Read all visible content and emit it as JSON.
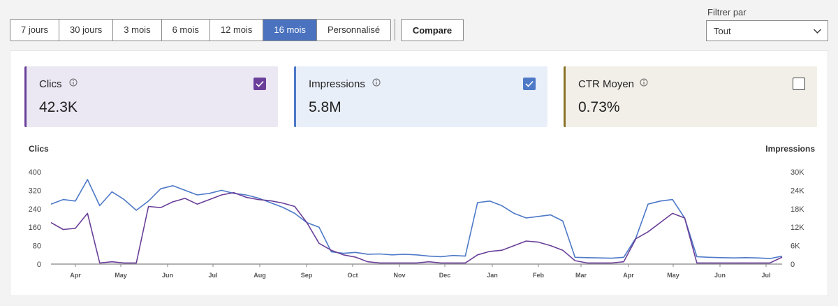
{
  "ranges": [
    "7 jours",
    "30 jours",
    "3 mois",
    "6 mois",
    "12 mois",
    "16 mois",
    "Personnalisé"
  ],
  "active_range": "16 mois",
  "compare_label": "Compare",
  "filter": {
    "label": "Filtrer par",
    "value": "Tout"
  },
  "cards": [
    {
      "title": "Clics",
      "value": "42.3K",
      "checked": true
    },
    {
      "title": "Impressions",
      "value": "5.8M",
      "checked": true
    },
    {
      "title": "CTR Moyen",
      "value": "0.73%",
      "checked": false
    }
  ],
  "colors": {
    "clics": "#6a3f99",
    "impressions": "#4d79c7",
    "ctr": "#8a7327",
    "active": "#4a72bf"
  },
  "chart_data": {
    "type": "line",
    "left_axis_title": "Clics",
    "right_axis_title": "Impressions",
    "left_ticks": [
      "400",
      "320",
      "240",
      "160",
      "80",
      "0"
    ],
    "right_ticks": [
      "30K",
      "24K",
      "18K",
      "12K",
      "6K",
      "0"
    ],
    "ylim_left": [
      0,
      400
    ],
    "ylim_right": [
      0,
      30000
    ],
    "x_labels": [
      "Apr",
      "May",
      "Jun",
      "Jul",
      "Aug",
      "Sep",
      "Oct",
      "Nov",
      "Dec",
      "Jan",
      "Feb",
      "Mar",
      "Apr",
      "May",
      "Jun",
      "Jul"
    ],
    "series": [
      {
        "name": "Impressions",
        "axis": "right",
        "values": [
          19500,
          21000,
          20500,
          27500,
          19000,
          23500,
          21000,
          17500,
          20500,
          24500,
          25500,
          24000,
          22500,
          23000,
          24000,
          23000,
          22500,
          21500,
          20000,
          18500,
          16500,
          13500,
          12000,
          4000,
          3500,
          3800,
          3200,
          3300,
          3000,
          3200,
          3000,
          2600,
          2400,
          2800,
          2600,
          20000,
          20500,
          19000,
          16500,
          15000,
          15500,
          16000,
          14000,
          2200,
          2100,
          2000,
          1900,
          2200,
          8500,
          19500,
          20500,
          21000,
          15000,
          2400,
          2200,
          2100,
          2000,
          2100,
          2000,
          1800,
          2600
        ]
      },
      {
        "name": "Clics",
        "axis": "left",
        "values": [
          180,
          150,
          155,
          220,
          5,
          10,
          5,
          5,
          250,
          245,
          270,
          285,
          260,
          280,
          300,
          310,
          290,
          280,
          275,
          265,
          250,
          180,
          90,
          60,
          40,
          30,
          10,
          5,
          5,
          5,
          5,
          10,
          5,
          5,
          5,
          40,
          55,
          60,
          80,
          100,
          95,
          80,
          60,
          15,
          5,
          5,
          5,
          10,
          110,
          140,
          180,
          220,
          200,
          5,
          5,
          5,
          5,
          5,
          5,
          5,
          30
        ]
      }
    ]
  }
}
